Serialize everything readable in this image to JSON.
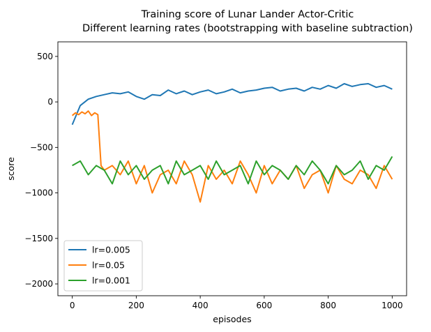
{
  "chart_data": {
    "type": "line",
    "title_lines": [
      "Training score of Lunar Lander Actor-Critic",
      "Different learning rates (bootstrapping with baseline subtraction)"
    ],
    "xlabel": "episodes",
    "ylabel": "score",
    "xlim": [
      -45,
      1045
    ],
    "ylim": [
      -2130,
      660
    ],
    "xticks": [
      0,
      200,
      400,
      600,
      800,
      1000
    ],
    "yticks": [
      -2000,
      -1500,
      -1000,
      -500,
      0,
      500
    ],
    "xtick_labels": [
      "0",
      "200",
      "400",
      "600",
      "800",
      "1000"
    ],
    "ytick_labels": [
      "−2000",
      "−1500",
      "−1000",
      "−500",
      "0",
      "500"
    ],
    "grid": false,
    "legend_position": "lower-left",
    "series": [
      {
        "name": "lr=0.005",
        "color": "#1f77b4",
        "x": [
          0,
          25,
          50,
          75,
          100,
          125,
          150,
          175,
          200,
          225,
          250,
          275,
          300,
          325,
          350,
          375,
          400,
          425,
          450,
          475,
          500,
          525,
          550,
          575,
          600,
          625,
          650,
          675,
          700,
          725,
          750,
          775,
          800,
          825,
          850,
          875,
          900,
          925,
          950,
          975,
          1000
        ],
        "values": [
          -250,
          -40,
          30,
          60,
          80,
          100,
          90,
          110,
          60,
          30,
          80,
          70,
          130,
          90,
          120,
          80,
          110,
          130,
          90,
          110,
          140,
          100,
          120,
          130,
          150,
          160,
          120,
          140,
          150,
          120,
          160,
          140,
          180,
          150,
          200,
          170,
          190,
          200,
          160,
          180,
          140
        ]
      },
      {
        "name": "lr=0.05",
        "color": "#ff7f0e",
        "x": [
          0,
          10,
          20,
          30,
          40,
          50,
          60,
          70,
          80,
          90,
          100,
          125,
          150,
          175,
          200,
          225,
          250,
          275,
          300,
          325,
          350,
          375,
          400,
          425,
          450,
          475,
          500,
          525,
          550,
          575,
          600,
          625,
          650,
          675,
          700,
          725,
          750,
          775,
          800,
          825,
          850,
          875,
          900,
          925,
          950,
          975,
          1000
        ],
        "values": [
          -150,
          -120,
          -140,
          -110,
          -130,
          -100,
          -150,
          -120,
          -140,
          -700,
          -750,
          -700,
          -800,
          -650,
          -900,
          -700,
          -1000,
          -800,
          -750,
          -900,
          -650,
          -800,
          -1100,
          -700,
          -850,
          -750,
          -900,
          -650,
          -800,
          -1000,
          -700,
          -900,
          -750,
          -850,
          -700,
          -950,
          -800,
          -750,
          -1000,
          -700,
          -850,
          -900,
          -750,
          -800,
          -950,
          -700,
          -850
        ]
      },
      {
        "name": "lr=0.001",
        "color": "#2ca02c",
        "x": [
          0,
          25,
          50,
          75,
          100,
          125,
          150,
          175,
          200,
          225,
          250,
          275,
          300,
          325,
          350,
          375,
          400,
          425,
          450,
          475,
          500,
          525,
          550,
          575,
          600,
          625,
          650,
          675,
          700,
          725,
          750,
          775,
          800,
          825,
          850,
          875,
          900,
          925,
          950,
          975,
          1000
        ],
        "values": [
          -700,
          -650,
          -800,
          -700,
          -750,
          -900,
          -650,
          -800,
          -700,
          -850,
          -750,
          -700,
          -900,
          -650,
          -800,
          -750,
          -700,
          -850,
          -650,
          -800,
          -750,
          -700,
          -900,
          -650,
          -800,
          -700,
          -750,
          -850,
          -700,
          -800,
          -650,
          -750,
          -900,
          -700,
          -800,
          -750,
          -650,
          -850,
          -700,
          -750,
          -600
        ]
      }
    ]
  }
}
